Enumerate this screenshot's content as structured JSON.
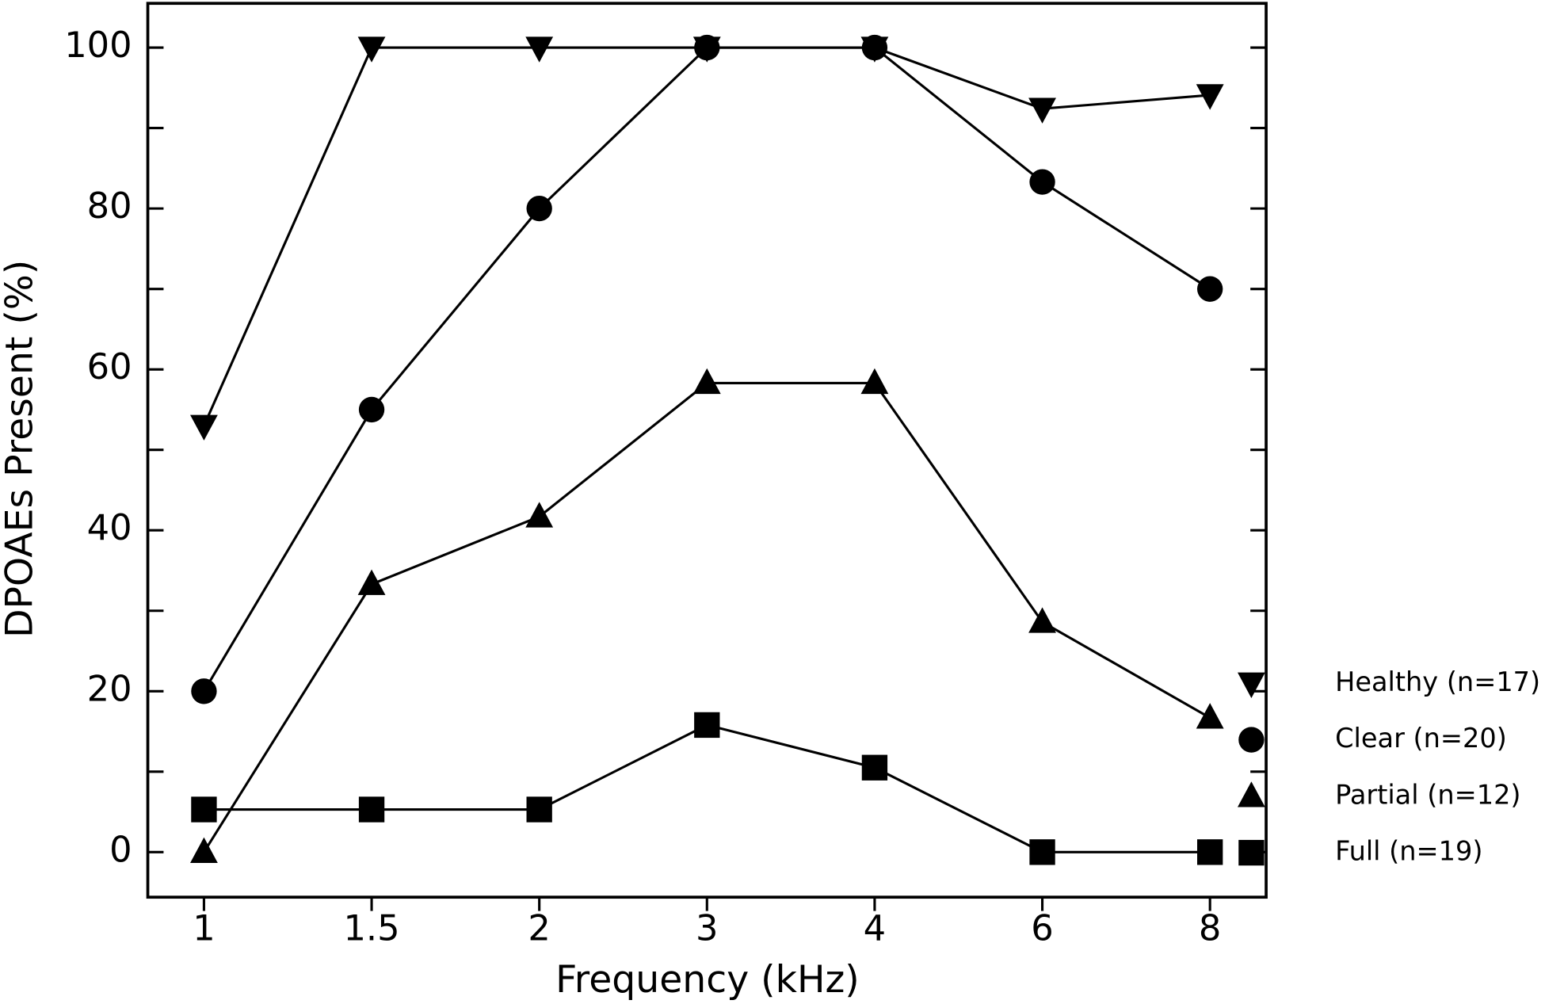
{
  "chart_data": {
    "type": "line",
    "x_label": "Frequency (kHz)",
    "y_label": "DPOAEs Present (%)",
    "categories": [
      "1",
      "1.5",
      "2",
      "3",
      "4",
      "6",
      "8"
    ],
    "series": [
      {
        "name": "Healthy (n=17)",
        "color": "#000000",
        "marker": "triangle-down",
        "values": [
          53,
          100,
          100,
          100,
          100,
          92.4,
          94.1
        ]
      },
      {
        "name": "Clear (n=20)",
        "color": "#000000",
        "marker": "circle",
        "values": [
          20,
          55,
          80,
          100,
          100,
          83.3,
          70
        ]
      },
      {
        "name": "Partial (n=12)",
        "color": "#000000",
        "marker": "triangle-up",
        "values": [
          0,
          33.3,
          41.7,
          58.3,
          58.3,
          28.6,
          16.7
        ]
      },
      {
        "name": "Full (n=19)",
        "color": "#000000",
        "marker": "square",
        "values": [
          5.3,
          5.3,
          5.3,
          15.8,
          10.5,
          0,
          0
        ]
      }
    ],
    "ylim": [
      -5.6,
      105.5
    ],
    "yticks": [
      0,
      20,
      40,
      60,
      80,
      100
    ],
    "yminorticks": [
      10,
      30,
      50,
      70,
      90
    ],
    "grid": false,
    "legend": "right"
  }
}
